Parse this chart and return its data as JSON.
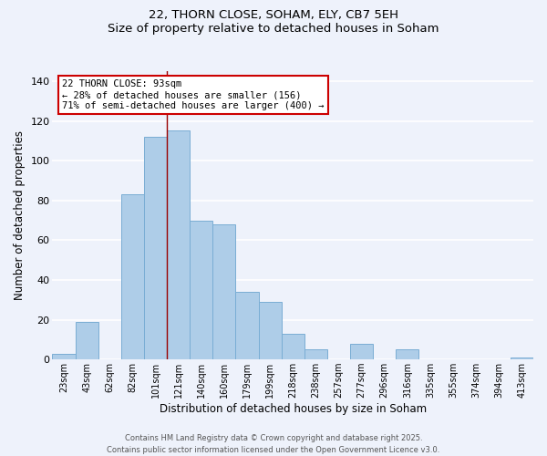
{
  "title": "22, THORN CLOSE, SOHAM, ELY, CB7 5EH",
  "subtitle": "Size of property relative to detached houses in Soham",
  "xlabel": "Distribution of detached houses by size in Soham",
  "ylabel": "Number of detached properties",
  "categories": [
    "23sqm",
    "43sqm",
    "62sqm",
    "82sqm",
    "101sqm",
    "121sqm",
    "140sqm",
    "160sqm",
    "179sqm",
    "199sqm",
    "218sqm",
    "238sqm",
    "257sqm",
    "277sqm",
    "296sqm",
    "316sqm",
    "335sqm",
    "355sqm",
    "374sqm",
    "394sqm",
    "413sqm"
  ],
  "values": [
    3,
    19,
    0,
    83,
    112,
    115,
    70,
    68,
    34,
    29,
    13,
    5,
    0,
    8,
    0,
    5,
    0,
    0,
    0,
    0,
    1
  ],
  "bar_color": "#aecde8",
  "bar_edge_color": "#7aadd4",
  "background_color": "#eef2fb",
  "grid_color": "#ffffff",
  "vline_x": 4.5,
  "vline_color": "#990000",
  "annotation_title": "22 THORN CLOSE: 93sqm",
  "annotation_line1": "← 28% of detached houses are smaller (156)",
  "annotation_line2": "71% of semi-detached houses are larger (400) →",
  "annotation_box_facecolor": "#ffffff",
  "annotation_box_edgecolor": "#cc0000",
  "ylim": [
    0,
    145
  ],
  "yticks": [
    0,
    20,
    40,
    60,
    80,
    100,
    120,
    140
  ],
  "footer1": "Contains HM Land Registry data © Crown copyright and database right 2025.",
  "footer2": "Contains public sector information licensed under the Open Government Licence v3.0."
}
